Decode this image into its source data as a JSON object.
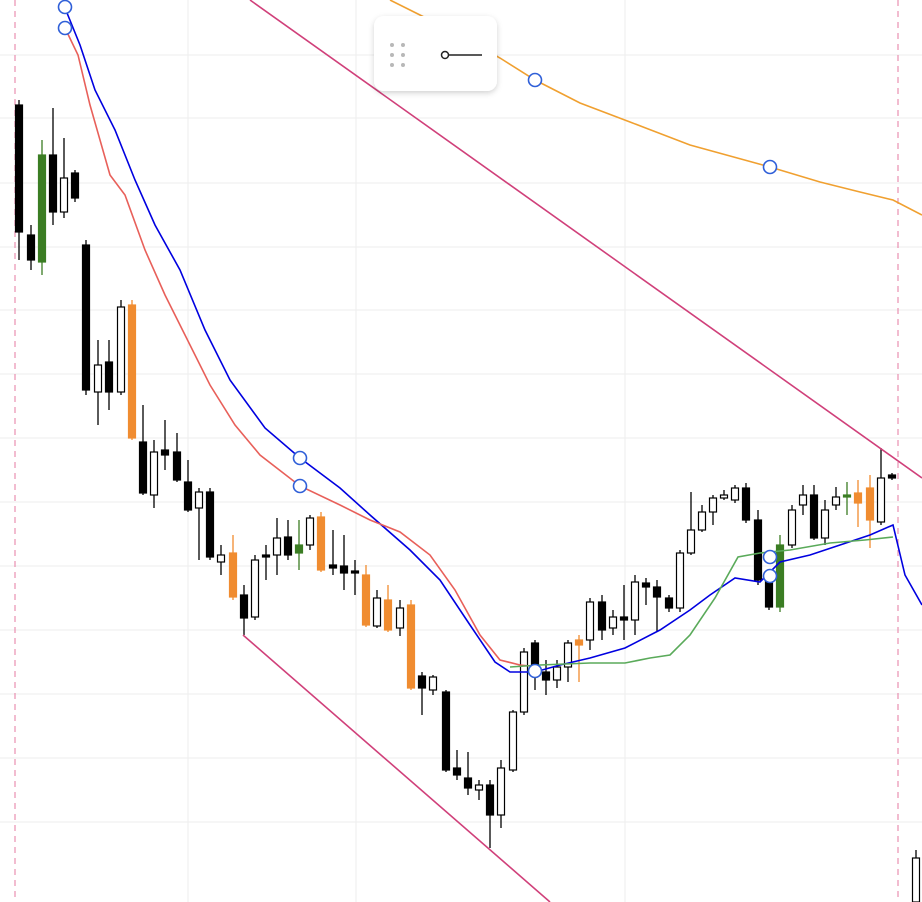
{
  "chart_data": {
    "type": "candlestick",
    "xlim": [
      0,
      922
    ],
    "ylim": [
      0,
      902
    ],
    "xticks": [
      188,
      356,
      625
    ],
    "yticks": [
      847,
      784,
      719,
      655,
      592,
      528,
      464,
      400,
      336,
      272,
      208,
      144,
      80
    ],
    "grid": true,
    "x": [
      19,
      31,
      42,
      53,
      64,
      75,
      86,
      98,
      109,
      121,
      132,
      143,
      154,
      165,
      177,
      188,
      199,
      210,
      221,
      233,
      244,
      255,
      266,
      277,
      288,
      299,
      310,
      321,
      333,
      344,
      355,
      366,
      377,
      388,
      400,
      411,
      422,
      433,
      446,
      457,
      468,
      479,
      490,
      501,
      513,
      524,
      535,
      546,
      557,
      568,
      579,
      590,
      602,
      613,
      624,
      635,
      646,
      657,
      669,
      680,
      691,
      702,
      713,
      724,
      735,
      746,
      758,
      769,
      780,
      792,
      803,
      814,
      825,
      836,
      847,
      858,
      870,
      881,
      892,
      916
    ],
    "open": [
      797,
      667,
      640,
      747,
      690,
      729,
      657,
      510,
      540,
      510,
      597,
      460,
      407,
      452,
      450,
      420,
      394,
      410,
      340,
      349,
      307,
      285,
      347,
      347,
      365,
      349,
      357,
      385,
      337,
      336,
      331,
      327,
      276,
      302,
      274,
      297,
      226,
      212,
      210,
      134,
      124,
      112,
      117,
      87,
      132,
      190,
      259,
      230,
      222,
      235,
      262,
      262,
      300,
      274,
      285,
      282,
      319,
      315,
      304,
      294,
      349,
      372,
      390,
      404,
      402,
      414,
      382,
      322,
      295,
      357,
      397,
      407,
      364,
      397,
      405,
      409,
      414,
      380,
      427,
      0
    ],
    "high": [
      802,
      677,
      762,
      794,
      764,
      732,
      662,
      562,
      562,
      602,
      602,
      497,
      462,
      482,
      469,
      442,
      414,
      414,
      357,
      367,
      317,
      347,
      357,
      384,
      382,
      382,
      387,
      390,
      372,
      367,
      342,
      337,
      312,
      317,
      302,
      302,
      230,
      227,
      212,
      152,
      150,
      122,
      122,
      142,
      192,
      254,
      262,
      242,
      242,
      262,
      267,
      304,
      307,
      292,
      317,
      327,
      324,
      322,
      307,
      352,
      410,
      397,
      407,
      412,
      417,
      419,
      392,
      332,
      367,
      397,
      417,
      417,
      402,
      415,
      420,
      422,
      427,
      454,
      429,
      52
    ],
    "low": [
      642,
      632,
      627,
      677,
      684,
      700,
      507,
      477,
      492,
      507,
      462,
      407,
      394,
      432,
      420,
      390,
      342,
      342,
      327,
      302,
      267,
      282,
      322,
      327,
      342,
      332,
      352,
      330,
      327,
      312,
      307,
      275,
      274,
      270,
      266,
      212,
      187,
      207,
      130,
      122,
      107,
      102,
      54,
      74,
      130,
      187,
      212,
      207,
      214,
      220,
      220,
      252,
      262,
      267,
      262,
      267,
      297,
      270,
      290,
      290,
      347,
      370,
      377,
      402,
      399,
      379,
      317,
      292,
      290,
      354,
      387,
      362,
      357,
      392,
      387,
      375,
      354,
      377,
      422,
      0
    ],
    "close": [
      670,
      642,
      747,
      690,
      724,
      704,
      512,
      537,
      510,
      595,
      464,
      409,
      450,
      447,
      422,
      392,
      410,
      345,
      347,
      305,
      284,
      342,
      345,
      364,
      347,
      357,
      384,
      332,
      334,
      329,
      329,
      277,
      304,
      272,
      294,
      214,
      214,
      225,
      132,
      127,
      114,
      117,
      87,
      134,
      190,
      250,
      235,
      222,
      235,
      259,
      257,
      300,
      272,
      285,
      282,
      320,
      315,
      305,
      294,
      349,
      372,
      390,
      404,
      407,
      414,
      382,
      322,
      295,
      357,
      392,
      407,
      364,
      392,
      405,
      407,
      399,
      382,
      424,
      424,
      44
    ],
    "colors": [
      "#000",
      "#000",
      "#3b7d23",
      "#000",
      "#fff",
      "#000",
      "#000",
      "#fff",
      "#000",
      "#fff",
      "#f08c30",
      "#000",
      "#fff",
      "#000",
      "#000",
      "#000",
      "#fff",
      "#000",
      "#fff",
      "#f08c30",
      "#000",
      "#fff",
      "#000",
      "#fff",
      "#000",
      "#3b7d23",
      "#fff",
      "#f08c30",
      "#000",
      "#000",
      "#000",
      "#f08c30",
      "#fff",
      "#f08c30",
      "#fff",
      "#f08c30",
      "#000",
      "#fff",
      "#000",
      "#000",
      "#000",
      "#fff",
      "#000",
      "#fff",
      "#fff",
      "#fff",
      "#000",
      "#000",
      "#fff",
      "#fff",
      "#f08c30",
      "#fff",
      "#000",
      "#fff",
      "#000",
      "#fff",
      "#000",
      "#000",
      "#000",
      "#fff",
      "#fff",
      "#fff",
      "#fff",
      "#fff",
      "#fff",
      "#000",
      "#000",
      "#000",
      "#3b7d23",
      "#fff",
      "#fff",
      "#000",
      "#fff",
      "#fff",
      "#3b7d23",
      "#f08c30",
      "#f08c30",
      "#fff",
      "#000",
      "#fff"
    ],
    "overlays": [
      {
        "color": "#0000e0",
        "x": [
          65,
          80,
          95,
          115,
          135,
          155,
          180,
          205,
          230,
          265,
          300,
          340,
          370,
          410,
          440,
          470,
          495,
          510,
          535,
          560,
          590,
          625,
          660,
          690,
          710,
          735,
          760,
          780,
          810,
          840,
          870,
          893,
          905,
          922
        ],
        "values": [
          894,
          857,
          812,
          772,
          722,
          677,
          632,
          572,
          522,
          474,
          444,
          414,
          387,
          352,
          322,
          277,
          240,
          230,
          230,
          237,
          244,
          254,
          272,
          292,
          307,
          324,
          320,
          340,
          347,
          357,
          367,
          377,
          327,
          297
        ]
      },
      {
        "color": "#e8605a",
        "x": [
          65,
          78,
          90,
          110,
          125,
          145,
          165,
          190,
          210,
          235,
          260,
          300,
          340,
          370,
          400,
          430,
          455,
          480,
          500,
          520,
          540
        ],
        "values": [
          874,
          847,
          797,
          727,
          707,
          652,
          607,
          557,
          517,
          477,
          447,
          416,
          397,
          382,
          370,
          347,
          312,
          267,
          242,
          237,
          235
        ]
      },
      {
        "color": "#5aaa5a",
        "x": [
          510,
          540,
          590,
          625,
          650,
          670,
          690,
          715,
          738,
          760,
          790,
          830,
          865,
          893
        ],
        "values": [
          235,
          237,
          239,
          239,
          244,
          247,
          267,
          304,
          345,
          349,
          352,
          359,
          362,
          365
        ]
      },
      {
        "color": "#f0a030",
        "x": [
          390,
          420,
          460,
          500,
          535,
          580,
          630,
          690,
          770,
          820,
          860,
          893,
          922
        ],
        "values": [
          902,
          887,
          867,
          844,
          822,
          799,
          780,
          757,
          735,
          720,
          710,
          702,
          687
        ]
      },
      {
        "color": "#d0407a",
        "x": [
          250,
          922
        ],
        "values": [
          902,
          424
        ]
      },
      {
        "color": "#d0407a",
        "x": [
          243,
          550
        ],
        "values": [
          267,
          0
        ]
      }
    ]
  }
}
